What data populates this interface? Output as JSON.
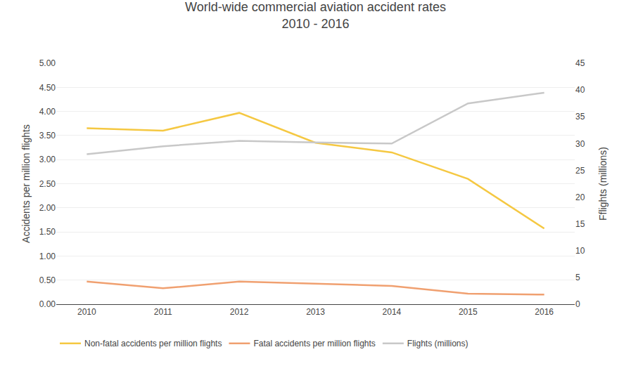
{
  "chart_data": {
    "type": "line",
    "title": "World-wide commercial aviation accident rates",
    "subtitle": "2010 - 2016",
    "x": [
      2010,
      2011,
      2012,
      2013,
      2014,
      2015,
      2016
    ],
    "xlim": [
      2009.6,
      2016.4
    ],
    "xticks": [
      2010,
      2011,
      2012,
      2013,
      2014,
      2015,
      2016
    ],
    "y_label": "Accidents per million flights",
    "y2_label": "Fflights (millions)",
    "ylim": [
      0,
      5.0
    ],
    "yticks": [
      {
        "value": 0.0,
        "label": "0.00"
      },
      {
        "value": 0.5,
        "label": "0.50"
      },
      {
        "value": 1.0,
        "label": "1.00"
      },
      {
        "value": 1.5,
        "label": "1.50"
      },
      {
        "value": 2.0,
        "label": "2.00"
      },
      {
        "value": 2.5,
        "label": "2.50"
      },
      {
        "value": 3.0,
        "label": "3.00"
      },
      {
        "value": 3.5,
        "label": "3.50"
      },
      {
        "value": 4.0,
        "label": "4.00"
      },
      {
        "value": 4.5,
        "label": "4.50"
      },
      {
        "value": 5.0,
        "label": "5.00"
      }
    ],
    "y2lim": [
      0,
      45
    ],
    "y2ticks": [
      0,
      5,
      10,
      15,
      20,
      25,
      30,
      35,
      40,
      45
    ],
    "grid": true,
    "legend": "bottom",
    "series": [
      {
        "name": "Non-fatal accidents per million flights",
        "color": "#f5c842",
        "values": [
          3.65,
          3.6,
          3.97,
          3.35,
          3.15,
          2.6,
          1.57
        ]
      },
      {
        "name": "Fatal accidents per million flights",
        "color": "#f0a070",
        "values": [
          0.47,
          0.33,
          0.47,
          0.42,
          0.38,
          0.22,
          0.2
        ]
      },
      {
        "name": "Flights (millions)",
        "color": "#c8c8c8",
        "values": [
          28.0,
          29.5,
          30.5,
          30.2,
          30.0,
          37.5,
          39.5
        ],
        "axis": "y2"
      }
    ]
  }
}
